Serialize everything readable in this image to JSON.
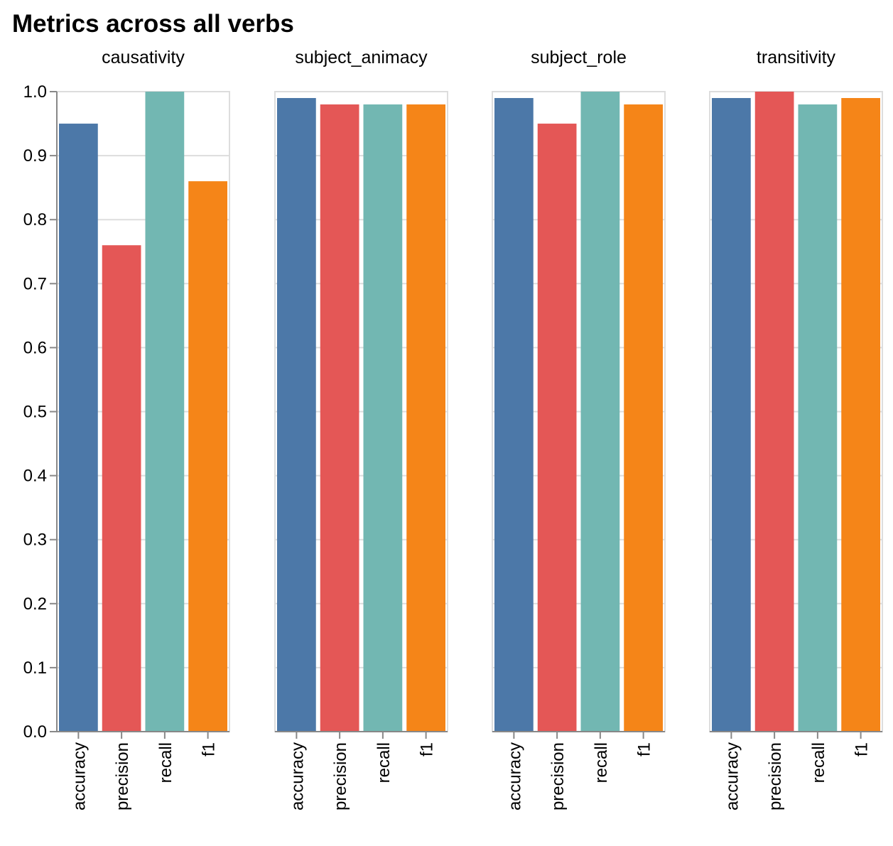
{
  "chart_data": {
    "type": "bar",
    "title": "Metrics across all verbs",
    "categories": [
      "accuracy",
      "precision",
      "recall",
      "f1"
    ],
    "colors": {
      "accuracy": "#4c78a8",
      "precision": "#e45756",
      "recall": "#72b7b2",
      "f1": "#f58518"
    },
    "ylim": [
      0,
      1
    ],
    "yticks": [
      "0.0",
      "0.1",
      "0.2",
      "0.3",
      "0.4",
      "0.5",
      "0.6",
      "0.7",
      "0.8",
      "0.9",
      "1.0"
    ],
    "grid": true,
    "facets": [
      {
        "name": "causativity",
        "values": [
          0.95,
          0.76,
          1.0,
          0.86
        ]
      },
      {
        "name": "subject_animacy",
        "values": [
          0.99,
          0.98,
          0.98,
          0.98
        ]
      },
      {
        "name": "subject_role",
        "values": [
          0.99,
          0.95,
          1.0,
          0.98
        ]
      },
      {
        "name": "transitivity",
        "values": [
          0.99,
          1.0,
          0.98,
          0.99
        ]
      }
    ]
  }
}
